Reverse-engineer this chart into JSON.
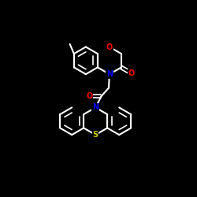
{
  "background": "#000000",
  "bond_color": "#ffffff",
  "atom_colors": {
    "O": "#ff0000",
    "N": "#0000ff",
    "S": "#cccc00",
    "C": "#ffffff"
  },
  "figsize": [
    2.5,
    2.5
  ],
  "dpi": 100,
  "xlim": [
    -1.25,
    1.25
  ],
  "ylim": [
    -1.55,
    1.45
  ]
}
